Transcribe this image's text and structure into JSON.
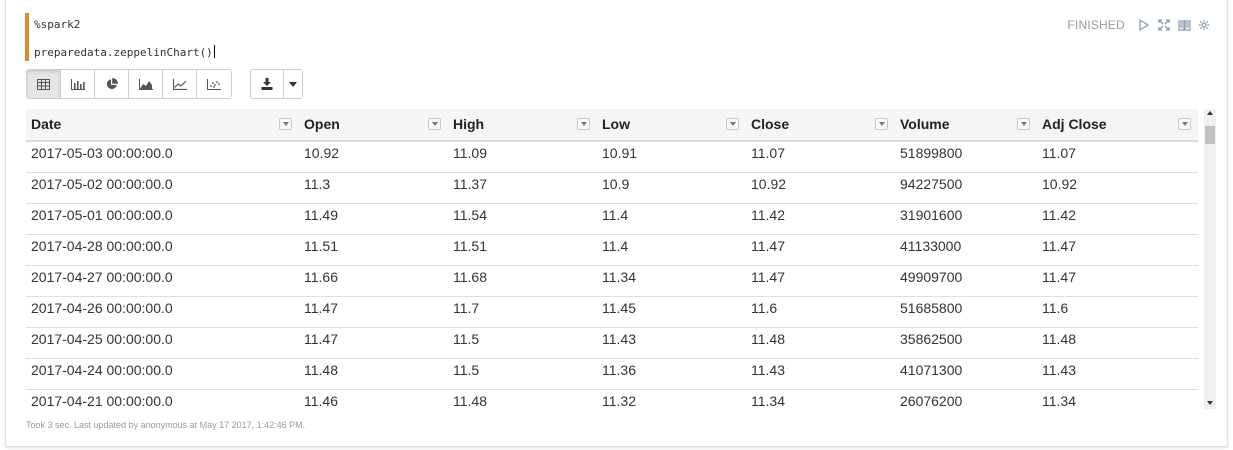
{
  "editor": {
    "line1": "%spark2",
    "line2": "preparedata.zeppelinChart()"
  },
  "status": {
    "text": "FINISHED"
  },
  "controls": {
    "run_icon": "play-icon",
    "expand_icon": "expand-icon",
    "book_icon": "book-icon",
    "settings_icon": "gear-icon"
  },
  "toolbar": {
    "views": [
      "table-icon",
      "bar-chart-icon",
      "pie-chart-icon",
      "area-chart-icon",
      "line-chart-icon",
      "scatter-chart-icon"
    ],
    "active_view": "table-icon",
    "download_icon": "download-icon",
    "dropdown_icon": "caret-down-icon"
  },
  "table": {
    "columns": [
      "Date",
      "Open",
      "High",
      "Low",
      "Close",
      "Volume",
      "Adj Close"
    ],
    "rows": [
      [
        "2017-05-03 00:00:00.0",
        "10.92",
        "11.09",
        "10.91",
        "11.07",
        "51899800",
        "11.07"
      ],
      [
        "2017-05-02 00:00:00.0",
        "11.3",
        "11.37",
        "10.9",
        "10.92",
        "94227500",
        "10.92"
      ],
      [
        "2017-05-01 00:00:00.0",
        "11.49",
        "11.54",
        "11.4",
        "11.42",
        "31901600",
        "11.42"
      ],
      [
        "2017-04-28 00:00:00.0",
        "11.51",
        "11.51",
        "11.4",
        "11.47",
        "41133000",
        "11.47"
      ],
      [
        "2017-04-27 00:00:00.0",
        "11.66",
        "11.68",
        "11.34",
        "11.47",
        "49909700",
        "11.47"
      ],
      [
        "2017-04-26 00:00:00.0",
        "11.47",
        "11.7",
        "11.45",
        "11.6",
        "51685800",
        "11.6"
      ],
      [
        "2017-04-25 00:00:00.0",
        "11.47",
        "11.5",
        "11.43",
        "11.48",
        "35862500",
        "11.48"
      ],
      [
        "2017-04-24 00:00:00.0",
        "11.48",
        "11.5",
        "11.36",
        "11.43",
        "41071300",
        "11.43"
      ],
      [
        "2017-04-21 00:00:00.0",
        "11.46",
        "11.48",
        "11.32",
        "11.34",
        "26076200",
        "11.34"
      ]
    ]
  },
  "footer": {
    "text": "Took 3 sec. Last updated by anonymous at May 17 2017, 1:42:46 PM."
  },
  "colors": {
    "editor_accent": "#e0882a",
    "status_text": "#999999",
    "icon": "#8a9bb5"
  }
}
